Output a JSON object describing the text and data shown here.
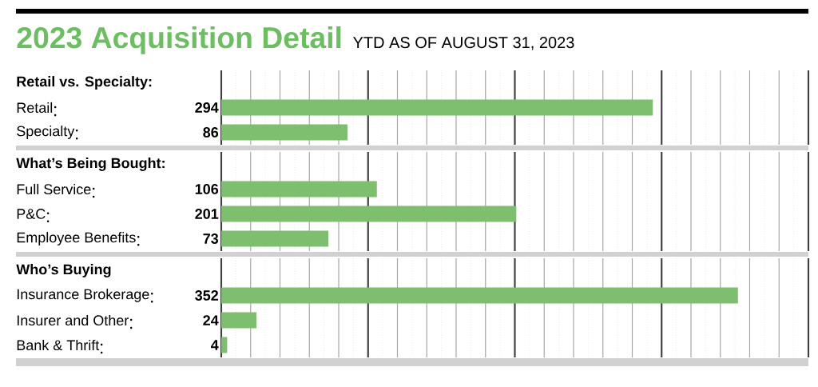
{
  "chart_data": [
    {
      "type": "other",
      "title": "2023 Acquisition Detail",
      "subtitle": "YTD AS OF AUGUST 31, 2023"
    },
    {
      "type": "bar",
      "orientation": "horizontal",
      "title": "Retail vs. Specialty:",
      "categories": [
        "Retail",
        "Specialty"
      ],
      "values": [
        294,
        86
      ],
      "color": "#7dbf6f",
      "data_labels": true,
      "xlim": [
        0,
        400
      ],
      "xticks": [
        {
          "value": 0,
          "label": null
        },
        {
          "value": 20,
          "label": null
        },
        {
          "value": 40,
          "label": null
        },
        {
          "value": 60,
          "label": null
        },
        {
          "value": 80,
          "label": null
        },
        {
          "value": 100,
          "label": null
        },
        {
          "value": 120,
          "label": null
        },
        {
          "value": 140,
          "label": null
        },
        {
          "value": 160,
          "label": null
        },
        {
          "value": 180,
          "label": null
        },
        {
          "value": 200,
          "label": null
        },
        {
          "value": 220,
          "label": null
        },
        {
          "value": 240,
          "label": null
        },
        {
          "value": 260,
          "label": null
        },
        {
          "value": 280,
          "label": null
        },
        {
          "value": 300,
          "label": null
        },
        {
          "value": 320,
          "label": null
        },
        {
          "value": 340,
          "label": null
        },
        {
          "value": 360,
          "label": null
        },
        {
          "value": 380,
          "label": null
        },
        {
          "value": 400,
          "label": null
        }
      ],
      "grid": "x"
    },
    {
      "type": "bar",
      "orientation": "horizontal",
      "title": "What’s Being Bought:",
      "categories": [
        "Full Service",
        "P&C",
        "Employee Benefits"
      ],
      "values": [
        106,
        201,
        73
      ],
      "color": "#7dbf6f",
      "data_labels": true,
      "xlim": [
        0,
        400
      ],
      "xticks": [
        {
          "value": 0,
          "label": null
        },
        {
          "value": 20,
          "label": null
        },
        {
          "value": 40,
          "label": null
        },
        {
          "value": 60,
          "label": null
        },
        {
          "value": 80,
          "label": null
        },
        {
          "value": 100,
          "label": null
        },
        {
          "value": 120,
          "label": null
        },
        {
          "value": 140,
          "label": null
        },
        {
          "value": 160,
          "label": null
        },
        {
          "value": 180,
          "label": null
        },
        {
          "value": 200,
          "label": null
        },
        {
          "value": 220,
          "label": null
        },
        {
          "value": 240,
          "label": null
        },
        {
          "value": 260,
          "label": null
        },
        {
          "value": 280,
          "label": null
        },
        {
          "value": 300,
          "label": null
        },
        {
          "value": 320,
          "label": null
        },
        {
          "value": 340,
          "label": null
        },
        {
          "value": 360,
          "label": null
        },
        {
          "value": 380,
          "label": null
        },
        {
          "value": 400,
          "label": null
        }
      ],
      "grid": "x"
    },
    {
      "type": "bar",
      "orientation": "horizontal",
      "title": "Who’s Buying",
      "categories": [
        "Insurance Brokerage",
        "Insurer and Other",
        "Bank & Thrift"
      ],
      "values": [
        352,
        24,
        4
      ],
      "color": "#7dbf6f",
      "data_labels": true,
      "xlim": [
        0,
        400
      ],
      "xticks": [
        {
          "value": 0,
          "label": null
        },
        {
          "value": 20,
          "label": null
        },
        {
          "value": 40,
          "label": null
        },
        {
          "value": 60,
          "label": null
        },
        {
          "value": 80,
          "label": null
        },
        {
          "value": 100,
          "label": null
        },
        {
          "value": 120,
          "label": null
        },
        {
          "value": 140,
          "label": null
        },
        {
          "value": 160,
          "label": null
        },
        {
          "value": 180,
          "label": null
        },
        {
          "value": 200,
          "label": null
        },
        {
          "value": 220,
          "label": null
        },
        {
          "value": 240,
          "label": null
        },
        {
          "value": 260,
          "label": null
        },
        {
          "value": 280,
          "label": null
        },
        {
          "value": 300,
          "label": null
        },
        {
          "value": 320,
          "label": null
        },
        {
          "value": 340,
          "label": null
        },
        {
          "value": 360,
          "label": null
        },
        {
          "value": 380,
          "label": null
        },
        {
          "value": 400,
          "label": null
        }
      ],
      "grid": "x"
    }
  ]
}
